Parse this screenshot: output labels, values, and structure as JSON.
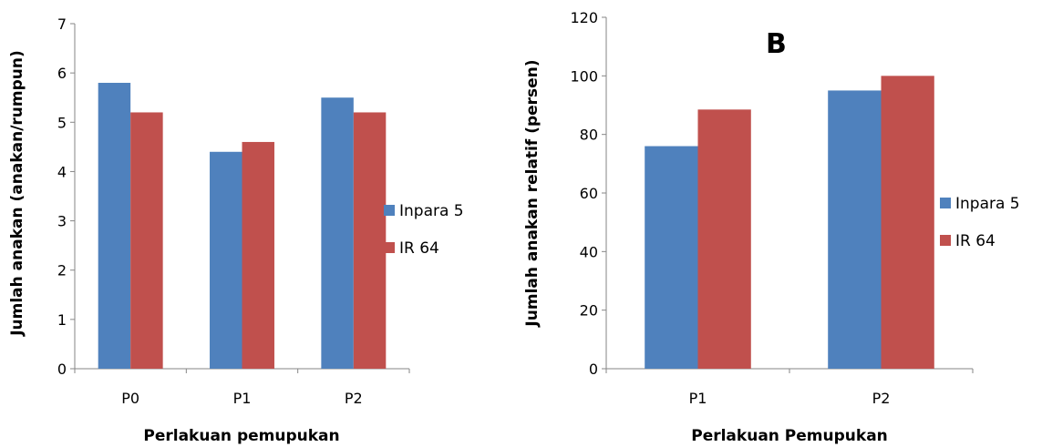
{
  "chart_data": [
    {
      "type": "bar",
      "panel_label": "",
      "categories": [
        "P0",
        "P1",
        "P2"
      ],
      "series": [
        {
          "name": "Inpara 5",
          "values": [
            5.8,
            4.4,
            5.5
          ],
          "color": "#4F81BD"
        },
        {
          "name": "IR 64",
          "values": [
            5.2,
            4.6,
            5.2
          ],
          "color": "#C0504D"
        }
      ],
      "xlabel": "Perlakuan pemupukan",
      "ylabel": "Jumlah anakan (anakan/rumpun)",
      "ylim": [
        0,
        7
      ],
      "yticks": [
        "0",
        "1",
        "2",
        "3",
        "4",
        "5",
        "6",
        "7"
      ],
      "grid": false,
      "legend_position": "right"
    },
    {
      "type": "bar",
      "panel_label": "B",
      "categories": [
        "P1",
        "P2"
      ],
      "series": [
        {
          "name": "Inpara 5",
          "values": [
            76,
            95
          ],
          "color": "#4F81BD"
        },
        {
          "name": "IR 64",
          "values": [
            88.5,
            100
          ],
          "color": "#C0504D"
        }
      ],
      "xlabel": "Perlakuan Pemupukan",
      "ylabel": "Jumlah anakan relatif (persen)",
      "ylim": [
        0,
        120
      ],
      "yticks": [
        "0",
        "20",
        "40",
        "60",
        "80",
        "100",
        "120"
      ],
      "grid": false,
      "legend_position": "right"
    }
  ]
}
